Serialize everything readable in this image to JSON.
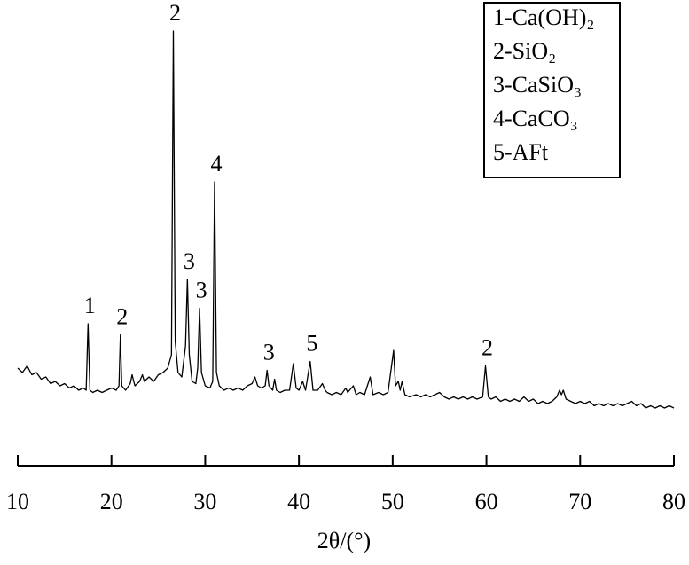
{
  "chart_data": {
    "type": "line",
    "x_label": "2θ/(°)",
    "x": [
      10,
      10.5,
      11,
      11.5,
      12,
      12.5,
      13,
      13.5,
      14,
      14.5,
      15,
      15.5,
      16,
      16.5,
      17,
      17.3,
      17.5,
      17.7,
      18,
      18.5,
      19,
      19.5,
      20,
      20.5,
      20.8,
      20.95,
      21.1,
      21.5,
      22,
      22.2,
      22.5,
      23,
      23.3,
      23.5,
      24,
      24.5,
      25,
      25.5,
      26,
      26.4,
      26.6,
      26.8,
      27.1,
      27.5,
      27.9,
      28.1,
      28.3,
      28.6,
      29,
      29.2,
      29.4,
      29.6,
      30,
      30.5,
      30.8,
      31,
      31.2,
      31.5,
      32,
      32.5,
      33,
      33.5,
      34,
      34.5,
      35,
      35.3,
      35.6,
      36,
      36.4,
      36.6,
      36.8,
      37.2,
      37.4,
      37.6,
      38,
      38.5,
      39,
      39.4,
      39.7,
      40,
      40.4,
      40.7,
      41.2,
      41.5,
      42,
      42.5,
      42.8,
      43,
      43.5,
      44,
      44.5,
      45,
      45.2,
      45.8,
      46.1,
      46.5,
      47,
      47.6,
      47.9,
      48.5,
      49,
      49.5,
      50.1,
      50.3,
      50.6,
      50.8,
      51,
      51.3,
      51.8,
      52.5,
      53,
      53.5,
      54,
      54.5,
      55,
      55.5,
      56,
      56.5,
      57,
      57.5,
      58,
      58.5,
      59,
      59.6,
      59.9,
      60.2,
      60.5,
      61,
      61.5,
      62,
      62.5,
      63,
      63.5,
      64,
      64.5,
      65,
      65.5,
      66,
      66.5,
      67,
      67.5,
      67.8,
      68,
      68.2,
      68.5,
      69,
      69.5,
      70,
      70.5,
      71,
      71.5,
      72,
      72.5,
      73,
      73.5,
      74,
      74.5,
      75,
      75.5,
      76,
      76.5,
      77,
      77.5,
      78,
      78.5,
      79,
      79.5,
      80
    ],
    "values": [
      22,
      21,
      22.5,
      20.5,
      21,
      19.5,
      20,
      18.5,
      19,
      18,
      18.5,
      17.5,
      18,
      17,
      17.5,
      17,
      32,
      17,
      16.5,
      17,
      16.5,
      17,
      17.5,
      17,
      18,
      29.5,
      18,
      17,
      18.5,
      20.5,
      18,
      19,
      20.5,
      19,
      20,
      19,
      20.5,
      21,
      22,
      25,
      98,
      28,
      21,
      20,
      27,
      42,
      25,
      19,
      18.5,
      22,
      35.5,
      21,
      18,
      17.5,
      19,
      64,
      21,
      18,
      17,
      17.5,
      17,
      17.5,
      17,
      18,
      18.5,
      20,
      18,
      17.5,
      18,
      21.5,
      18,
      17,
      19.5,
      17,
      16.5,
      17,
      17,
      23,
      17.5,
      17,
      19,
      17,
      23.5,
      17,
      17,
      18.5,
      17,
      16.5,
      16,
      16.5,
      16,
      17.5,
      16.5,
      18,
      16,
      16.5,
      16,
      20,
      16,
      16.5,
      16,
      16.5,
      26,
      18,
      19,
      17,
      19,
      16,
      15.5,
      16,
      15.5,
      16,
      15.5,
      16,
      16.5,
      15.5,
      15,
      15.5,
      15,
      15.5,
      15,
      15.5,
      15,
      15.5,
      22.5,
      15.5,
      15,
      15.5,
      14.5,
      15,
      14.5,
      15,
      14.5,
      15.5,
      14.5,
      15,
      14,
      14.5,
      14,
      14.5,
      15.5,
      17,
      16,
      17,
      15,
      14.5,
      14,
      14.5,
      14,
      14.5,
      13.5,
      14,
      13.5,
      14,
      13.5,
      14,
      13.5,
      14,
      14.5,
      13.5,
      14,
      13,
      13.5,
      13,
      13.5,
      13,
      13.5,
      13
    ],
    "color": "#000000",
    "xlim": [
      10,
      80
    ],
    "xticks": [
      10,
      20,
      30,
      40,
      50,
      60,
      70,
      80
    ],
    "ylim": [
      0,
      100
    ],
    "annotations": [
      {
        "text": "1",
        "x": 17.5
      },
      {
        "text": "2",
        "x": 20.95
      },
      {
        "text": "2",
        "x": 26.6
      },
      {
        "text": "3",
        "x": 28.1
      },
      {
        "text": "3",
        "x": 29.4
      },
      {
        "text": "4",
        "x": 31
      },
      {
        "text": "3",
        "x": 36.6
      },
      {
        "text": "5",
        "x": 41.2
      },
      {
        "text": "2",
        "x": 59.9
      }
    ],
    "legend": [
      "1-Ca(OH)₂",
      "2-SiO₂",
      "3-CaSiO₃",
      "4-CaCO₃",
      "5-AFt"
    ]
  }
}
